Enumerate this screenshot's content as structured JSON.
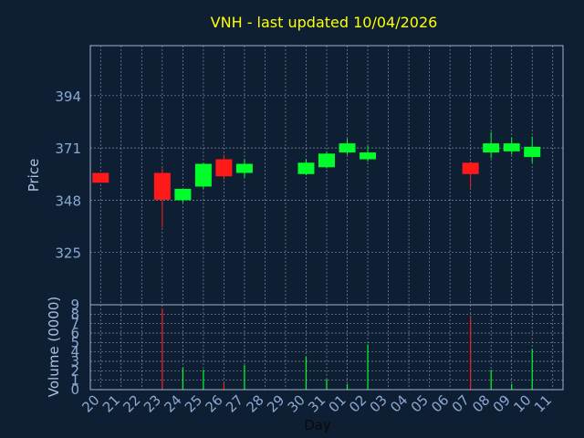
{
  "colors": {
    "background": "#0f1f33",
    "title": "#ffff00",
    "axis_text": "#8aa9d4",
    "axis_title": "#a9c0e0",
    "frame": "#9fb4d0",
    "grid": "#9fb4d0",
    "up": "#00ff2a",
    "down": "#ff1a1a"
  },
  "chart_data": [
    {
      "type": "candlestick",
      "title": "VNH - last updated 10/04/2026",
      "ylabel": "Price",
      "ylim": [
        302,
        416
      ],
      "yticks": [
        325,
        348,
        371,
        394
      ],
      "grid": true,
      "x": [
        "20",
        "21",
        "22",
        "23",
        "24",
        "25",
        "26",
        "27",
        "28",
        "29",
        "30",
        "31",
        "01",
        "02",
        "03",
        "04",
        "05",
        "06",
        "07",
        "08",
        "09",
        "10",
        "11"
      ],
      "candles": [
        {
          "day": "20",
          "open": 360,
          "high": 360,
          "low": 355.7,
          "close": 355.7
        },
        {
          "day": "23",
          "open": 360,
          "high": 362,
          "low": 336,
          "close": 348.2
        },
        {
          "day": "24",
          "open": 348,
          "high": 353,
          "low": 347,
          "close": 353
        },
        {
          "day": "25",
          "open": 354,
          "high": 364.5,
          "low": 353,
          "close": 364
        },
        {
          "day": "26",
          "open": 366,
          "high": 368,
          "low": 357,
          "close": 358.5
        },
        {
          "day": "27",
          "open": 360,
          "high": 366,
          "low": 358,
          "close": 364
        },
        {
          "day": "30",
          "open": 359.5,
          "high": 366,
          "low": 359,
          "close": 364.5
        },
        {
          "day": "31",
          "open": 362.5,
          "high": 369.5,
          "low": 362,
          "close": 368.5
        },
        {
          "day": "01",
          "open": 369,
          "high": 375,
          "low": 368,
          "close": 373
        },
        {
          "day": "02",
          "open": 366,
          "high": 372,
          "low": 365,
          "close": 369
        },
        {
          "day": "07",
          "open": 364.5,
          "high": 365,
          "low": 353.5,
          "close": 359.5
        },
        {
          "day": "08",
          "open": 369,
          "high": 378,
          "low": 366.5,
          "close": 373
        },
        {
          "day": "09",
          "open": 369.5,
          "high": 375.5,
          "low": 368,
          "close": 373
        },
        {
          "day": "10",
          "open": 367,
          "high": 376,
          "low": 364.5,
          "close": 371.5
        }
      ]
    },
    {
      "type": "bar",
      "ylabel": "Volume (0000)",
      "xlabel": "Day",
      "ylim": [
        0,
        9
      ],
      "yticks": [
        0,
        1,
        2,
        3,
        4,
        5,
        6,
        7,
        8,
        9
      ],
      "grid": true,
      "categories": [
        "20",
        "21",
        "22",
        "23",
        "24",
        "25",
        "26",
        "27",
        "28",
        "29",
        "30",
        "31",
        "01",
        "02",
        "03",
        "04",
        "05",
        "06",
        "07",
        "08",
        "09",
        "10",
        "11"
      ],
      "volume_bars": [
        {
          "day": "23",
          "value": 8.6,
          "direction": "down"
        },
        {
          "day": "24",
          "value": 2.3,
          "direction": "up"
        },
        {
          "day": "25",
          "value": 2.1,
          "direction": "up"
        },
        {
          "day": "26",
          "value": 0.7,
          "direction": "down"
        },
        {
          "day": "27",
          "value": 2.6,
          "direction": "up"
        },
        {
          "day": "30",
          "value": 3.5,
          "direction": "up"
        },
        {
          "day": "31",
          "value": 1.1,
          "direction": "up"
        },
        {
          "day": "01",
          "value": 0.6,
          "direction": "up"
        },
        {
          "day": "02",
          "value": 4.8,
          "direction": "up"
        },
        {
          "day": "07",
          "value": 7.8,
          "direction": "down"
        },
        {
          "day": "08",
          "value": 2.1,
          "direction": "up"
        },
        {
          "day": "09",
          "value": 0.6,
          "direction": "up"
        },
        {
          "day": "10",
          "value": 4.3,
          "direction": "up"
        }
      ]
    }
  ]
}
